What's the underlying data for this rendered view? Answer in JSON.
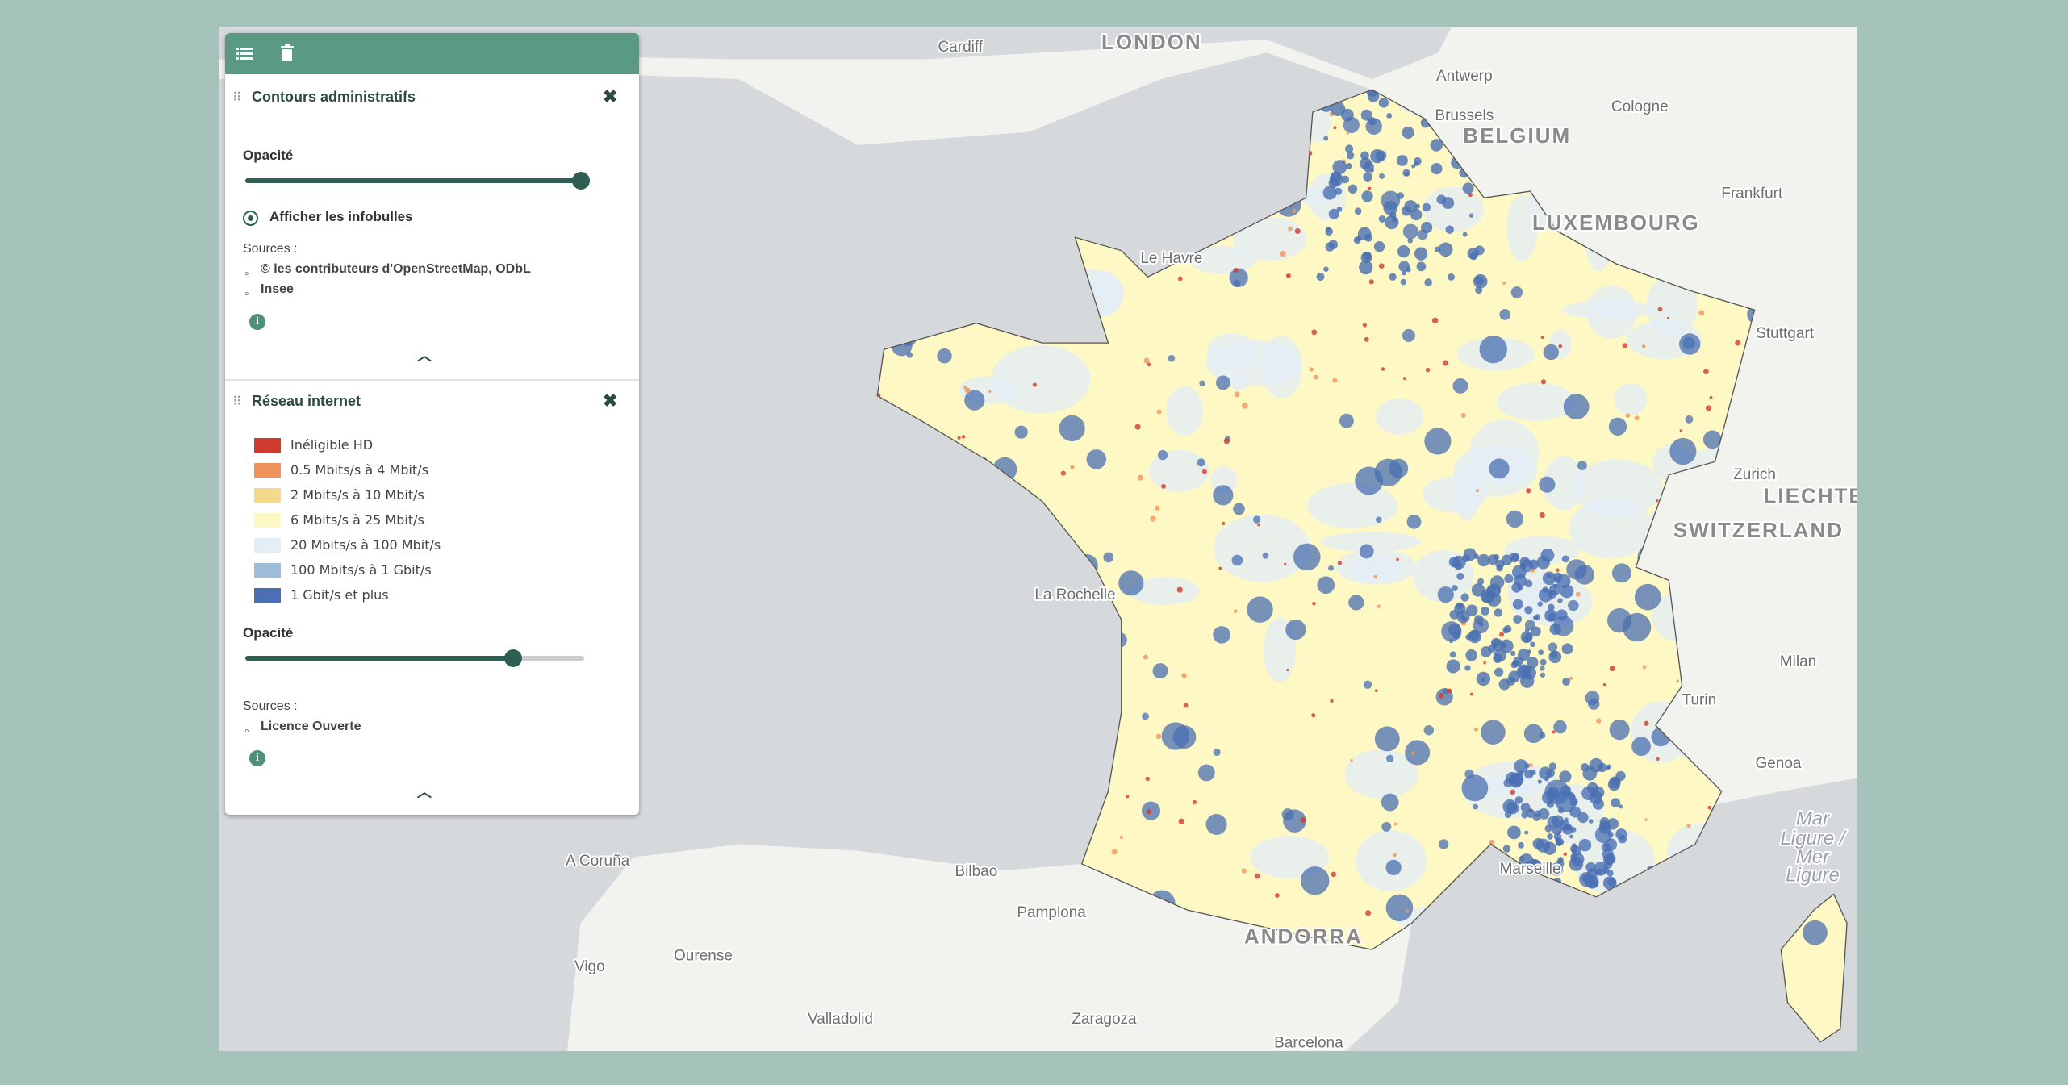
{
  "layers": [
    {
      "title": "Contours administratifs",
      "opacity_label": "Opacité",
      "infobulles": "Afficher les infobulles",
      "sources_label": "Sources :",
      "sources": [
        "© les contributeurs d'OpenStreetMap, ODbL",
        "Insee"
      ]
    },
    {
      "title": "Réseau internet",
      "legend": [
        {
          "label": "Inéligible HD",
          "color": "#d03b2f"
        },
        {
          "label": "0.5 Mbits/s à 4 Mbit/s",
          "color": "#f0935a"
        },
        {
          "label": "2 Mbits/s à 10 Mbit/s",
          "color": "#f7d98c"
        },
        {
          "label": "6 Mbits/s à 25 Mbit/s",
          "color": "#fdf8c4"
        },
        {
          "label": "20 Mbits/s à 100 Mbit/s",
          "color": "#e3eef6"
        },
        {
          "label": "100 Mbits/s à 1 Gbit/s",
          "color": "#9dbcda"
        },
        {
          "label": "1 Gbit/s et plus",
          "color": "#4a6fb3"
        }
      ],
      "opacity_label": "Opacité",
      "sources_label": "Sources :",
      "sources": [
        "Licence Ouverte"
      ]
    }
  ],
  "map_labels": [
    "Cardiff",
    "LONDON",
    "Antwerp",
    "Brussels",
    "BELGIUM",
    "Cologne",
    "Frankfurt",
    "LUXEMBOURG",
    "Stuttgart",
    "Zurich",
    "LIECHTE",
    "SWITZERLAND",
    "Milan",
    "Turin",
    "Genoa",
    "Mar",
    "Ligure /",
    "Mer",
    "Ligure",
    "Le Havre",
    "La Rochelle",
    "A Coruña",
    "Bilbao",
    "Pamplona",
    "Ourense",
    "Vigo",
    "Valladolid",
    "Zaragoza",
    "Barcelona",
    "ANDORRA",
    "Marseille"
  ]
}
